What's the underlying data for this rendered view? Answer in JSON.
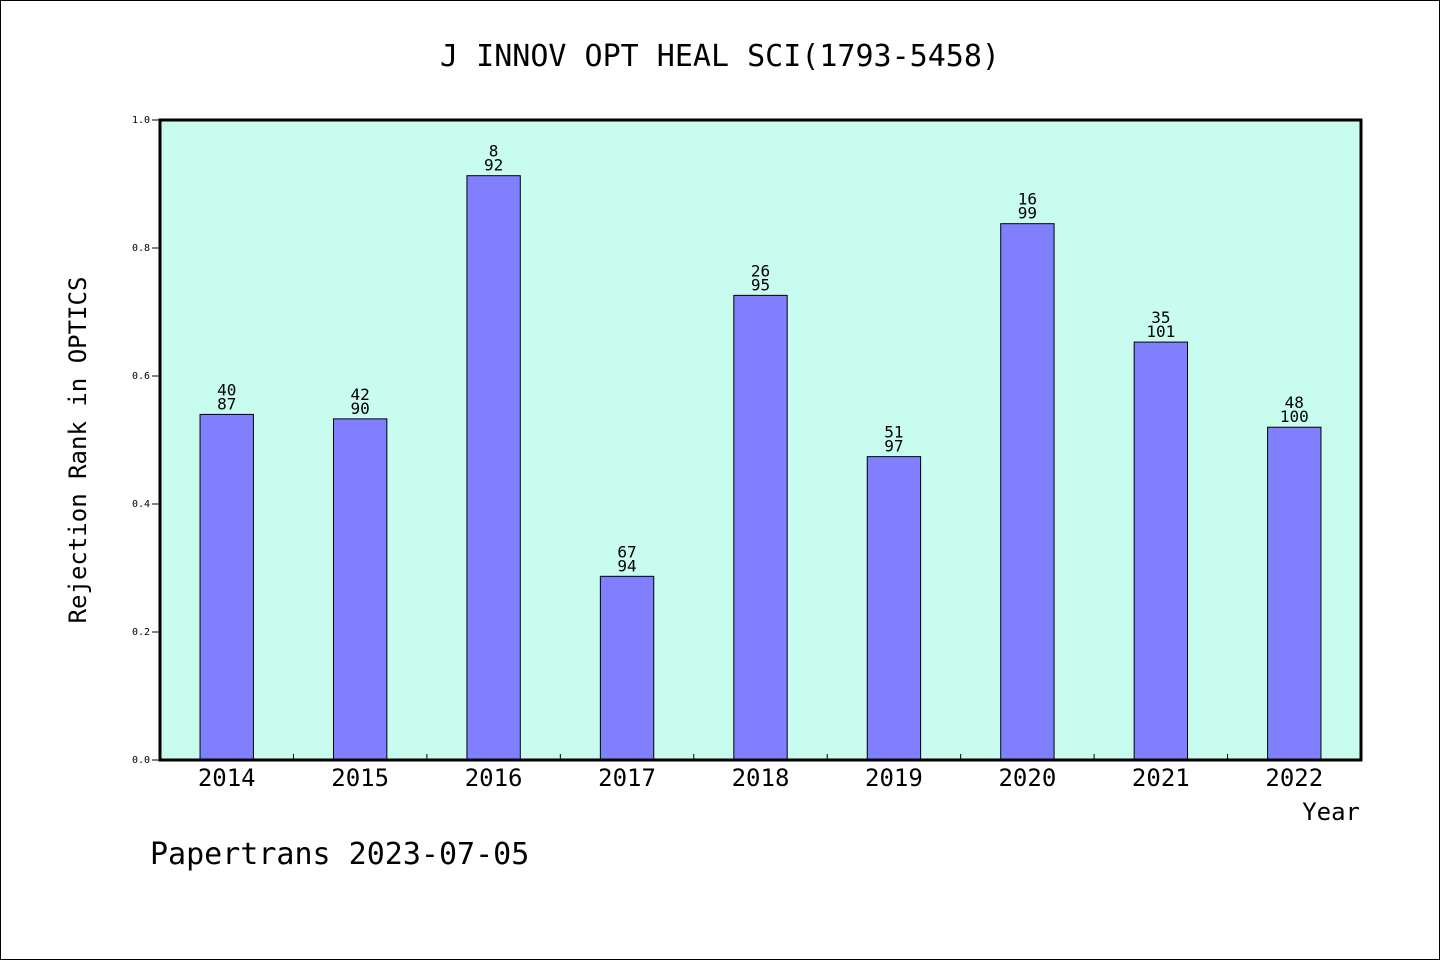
{
  "chart_data": {
    "type": "bar",
    "title": "J INNOV OPT HEAL SCI(1793-5458)",
    "xlabel": "Year",
    "ylabel": "Rejection Rank in OPTICS",
    "footer": "Papertrans 2023-07-05",
    "ylim": [
      0,
      1.0
    ],
    "y_ticks": [
      "0.0",
      "0.2",
      "0.4",
      "0.6",
      "0.8",
      "1.0"
    ],
    "categories": [
      "2014",
      "2015",
      "2016",
      "2017",
      "2018",
      "2019",
      "2020",
      "2021",
      "2022"
    ],
    "values": [
      0.54,
      0.533,
      0.913,
      0.287,
      0.726,
      0.474,
      0.838,
      0.653,
      0.52
    ],
    "label_top": [
      "40",
      "42",
      "8",
      "67",
      "26",
      "51",
      "16",
      "35",
      "48"
    ],
    "label_bottom": [
      "87",
      "90",
      "92",
      "94",
      "95",
      "97",
      "99",
      "101",
      "100"
    ],
    "grid": false,
    "colors": {
      "plot_background": "#c8fcee",
      "bar_fill": "#8080ff",
      "bar_stroke": "#000000"
    }
  }
}
